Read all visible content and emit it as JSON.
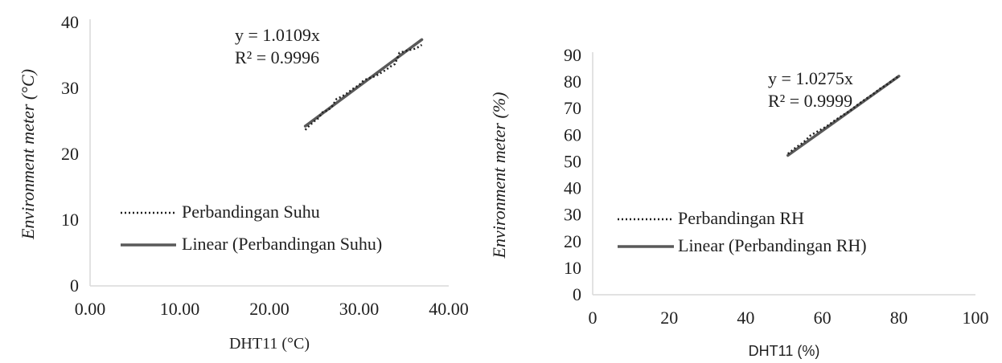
{
  "chart_data": [
    {
      "type": "scatter",
      "xlabel": "DHT11 (°C)",
      "ylabel": "Environment meter (°C)",
      "xlim": [
        0,
        40
      ],
      "ylim": [
        0,
        40
      ],
      "x_ticks": [
        "0.00",
        "10.00",
        "20.00",
        "30.00",
        "40.00"
      ],
      "y_ticks": [
        "0",
        "10",
        "20",
        "30",
        "40"
      ],
      "grid": false,
      "legend_placement": "bottom-left",
      "equation": "y = 1.0109x",
      "r_squared": "R² = 0.9996",
      "series": [
        {
          "name": "Perbandingan Suhu",
          "style": "dotted",
          "color": "#1f1f1f",
          "points": [
            [
              24.0,
              23.7
            ],
            [
              24.5,
              24.4
            ],
            [
              25.0,
              25.0
            ],
            [
              25.5,
              25.5
            ],
            [
              26.0,
              26.5
            ],
            [
              26.5,
              26.6
            ],
            [
              27.0,
              27.3
            ],
            [
              27.5,
              28.4
            ],
            [
              28.0,
              28.7
            ],
            [
              28.5,
              29.1
            ],
            [
              29.0,
              29.6
            ],
            [
              29.5,
              30.1
            ],
            [
              30.0,
              30.5
            ],
            [
              30.5,
              31.2
            ],
            [
              31.0,
              31.5
            ],
            [
              31.5,
              31.7
            ],
            [
              32.0,
              32.0
            ],
            [
              32.5,
              32.4
            ],
            [
              33.0,
              32.8
            ],
            [
              33.5,
              33.3
            ],
            [
              34.0,
              33.7
            ],
            [
              34.5,
              35.4
            ],
            [
              35.0,
              35.6
            ],
            [
              35.5,
              35.8
            ],
            [
              36.0,
              35.9
            ],
            [
              36.5,
              36.2
            ],
            [
              37.0,
              36.6
            ]
          ]
        },
        {
          "name": "Linear (Perbandingan Suhu)",
          "style": "solid",
          "color": "#595959",
          "slope": 1.0109,
          "x_range": [
            24,
            37
          ]
        }
      ]
    },
    {
      "type": "scatter",
      "xlabel": "DHT11 (%)",
      "ylabel": "Environment meter (%)",
      "xlim": [
        0,
        100
      ],
      "ylim": [
        0,
        90
      ],
      "x_ticks": [
        "0",
        "20",
        "40",
        "60",
        "80",
        "100"
      ],
      "y_ticks": [
        "0",
        "10",
        "20",
        "30",
        "40",
        "50",
        "60",
        "70",
        "80",
        "90"
      ],
      "grid": false,
      "legend_placement": "bottom-left",
      "equation": "y = 1.0275x",
      "r_squared": "R² = 0.9999",
      "series": [
        {
          "name": "Perbandingan RH",
          "style": "dotted",
          "color": "#1f1f1f",
          "points": [
            [
              51,
              53.0
            ],
            [
              53,
              55.3
            ],
            [
              55,
              57.2
            ],
            [
              57,
              60.0
            ],
            [
              59,
              61.6
            ],
            [
              61,
              63.2
            ],
            [
              63,
              65.3
            ],
            [
              65,
              67.2
            ],
            [
              67,
              69.0
            ],
            [
              69,
              71.2
            ],
            [
              71,
              73.3
            ],
            [
              73,
              75.2
            ],
            [
              75,
              77.4
            ],
            [
              77,
              79.2
            ],
            [
              79,
              81.3
            ],
            [
              80,
              82.2
            ]
          ]
        },
        {
          "name": "Linear (Perbandingan RH)",
          "style": "solid",
          "color": "#595959",
          "slope": 1.0275,
          "x_range": [
            51,
            80
          ]
        }
      ]
    }
  ]
}
